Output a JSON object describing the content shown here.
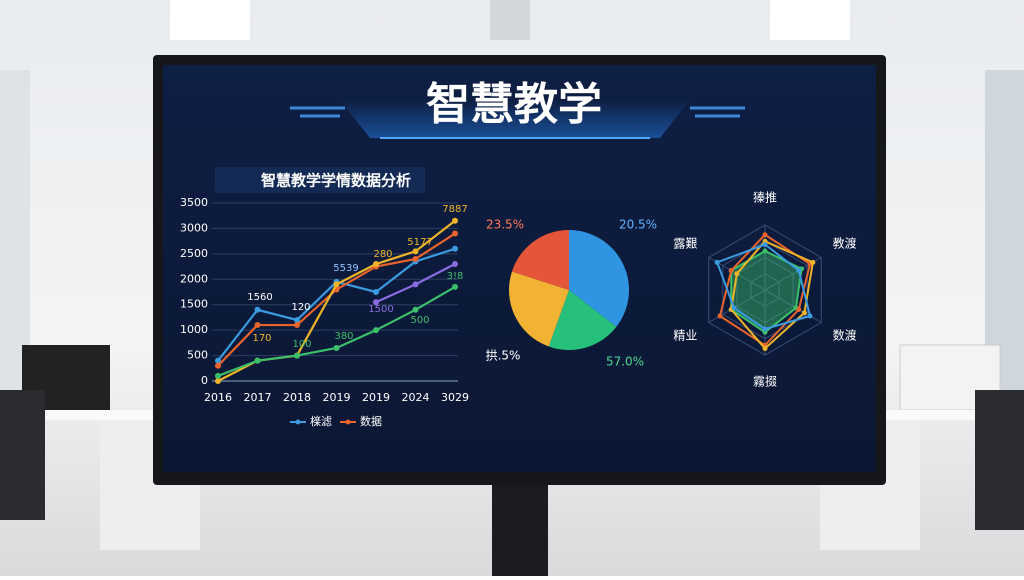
{
  "header": {
    "title": "智慧教学"
  },
  "chart_data": [
    {
      "type": "line",
      "title": "智慧教学学情数据分析",
      "categories": [
        "2016",
        "2017",
        "2018",
        "2019",
        "2019",
        "2024",
        "3029"
      ],
      "ylim": [
        0,
        3500
      ],
      "yticks": [
        0,
        500,
        1000,
        1500,
        2000,
        2500,
        3000,
        3500
      ],
      "grid": true,
      "series": [
        {
          "name": "檪滤",
          "color": "#3a9be0",
          "values": [
            400,
            1400,
            1200,
            1950,
            1750,
            2350,
            2600
          ]
        },
        {
          "name": "数据",
          "color": "#e8642c",
          "values": [
            300,
            1100,
            1100,
            1800,
            2250,
            2400,
            2900
          ]
        },
        {
          "color": "#f0b429",
          "values": [
            0,
            400,
            500,
            1900,
            2300,
            2550,
            3150
          ]
        },
        {
          "color": "#8a6ce0",
          "values": [
            null,
            null,
            null,
            null,
            1550,
            1900,
            2300
          ]
        },
        {
          "color": "#3cbf6a",
          "values": [
            100,
            400,
            500,
            650,
            1000,
            1400,
            1850
          ]
        }
      ],
      "annotations": [
        "1560",
        "120",
        "5539",
        "280",
        "5177",
        "7887",
        "170",
        "100",
        "380",
        "1500",
        "500",
        "3!8"
      ]
    },
    {
      "type": "pie",
      "values": [
        35.5,
        20,
        24.5,
        20
      ],
      "colors": [
        "#2f95e3",
        "#27c07a",
        "#f2b233",
        "#e5553a"
      ],
      "annotations": [
        "20.5%",
        "57.0%",
        "拱.5%",
        "23.5%"
      ]
    },
    {
      "type": "radar",
      "categories": [
        "獉推",
        "教渡",
        "数渡",
        "霧掇",
        "精业",
        "露艱"
      ],
      "rlim": [
        0,
        100
      ],
      "series": [
        {
          "color": "#3cbf6a",
          "values": [
            60,
            65,
            55,
            65,
            60,
            60
          ]
        },
        {
          "color": "#e8642c",
          "values": [
            85,
            80,
            60,
            85,
            80,
            60
          ]
        },
        {
          "color": "#f0b429",
          "values": [
            75,
            85,
            70,
            90,
            60,
            50
          ]
        },
        {
          "color": "#3a9be0",
          "values": [
            70,
            60,
            80,
            60,
            55,
            85
          ]
        }
      ]
    }
  ]
}
